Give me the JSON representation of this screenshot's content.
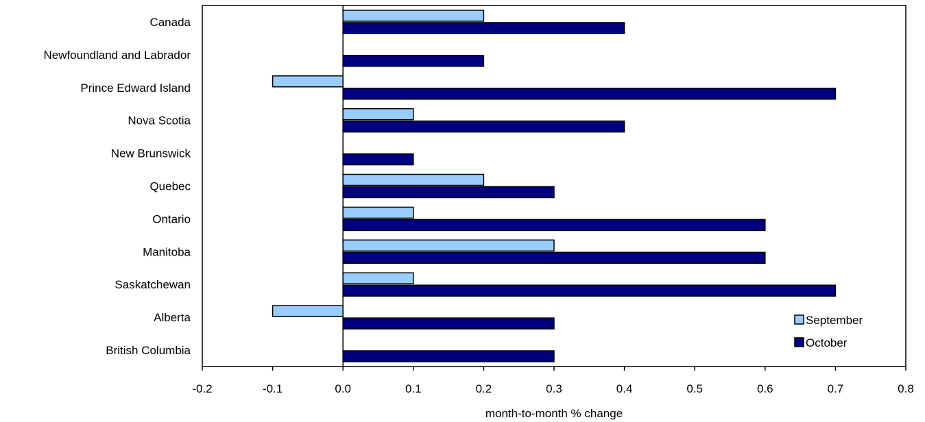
{
  "chart_data": {
    "type": "bar",
    "orientation": "horizontal",
    "title": "",
    "xlabel": "month-to-month % change",
    "ylabel": "",
    "xlim": [
      -0.2,
      0.8
    ],
    "x_ticks": [
      -0.2,
      -0.1,
      0.0,
      0.1,
      0.2,
      0.3,
      0.4,
      0.5,
      0.6,
      0.7,
      0.8
    ],
    "x_tick_labels": [
      "-0.2",
      "-0.1",
      "0.0",
      "0.1",
      "0.2",
      "0.3",
      "0.4",
      "0.5",
      "0.6",
      "0.7",
      "0.8"
    ],
    "grid": false,
    "legend_position": "bottom-right",
    "categories": [
      "Canada",
      "Newfoundland and Labrador",
      "Prince Edward Island",
      "Nova Scotia",
      "New Brunswick",
      "Quebec",
      "Ontario",
      "Manitoba",
      "Saskatchewan",
      "Alberta",
      "British Columbia"
    ],
    "series": [
      {
        "name": "September",
        "color": "#99ccff",
        "values": [
          0.2,
          0.0,
          -0.1,
          0.1,
          0.0,
          0.2,
          0.1,
          0.3,
          0.1,
          -0.1,
          0.0
        ]
      },
      {
        "name": "October",
        "color": "#000080",
        "values": [
          0.4,
          0.2,
          0.7,
          0.4,
          0.1,
          0.3,
          0.6,
          0.6,
          0.7,
          0.3,
          0.3
        ]
      }
    ]
  }
}
